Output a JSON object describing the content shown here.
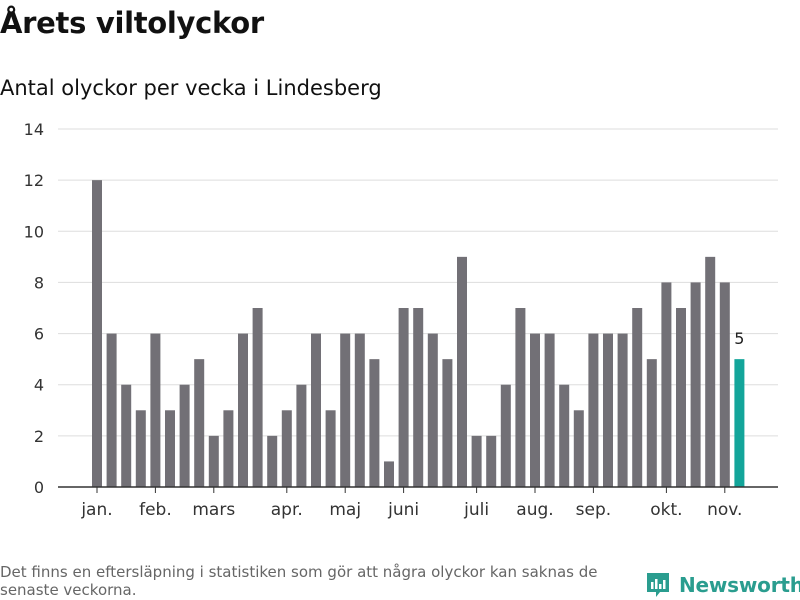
{
  "header": {
    "title": "Årets viltolyckor",
    "subtitle": "Antal olyckor per vecka i Lindesberg"
  },
  "footer": {
    "note": "Det finns en eftersläpning i statistiken som gör att några olyckor kan saknas de senaste veckorna.",
    "brand": "Newsworthy",
    "brand_icon": "newsworthy-logo-icon"
  },
  "colors": {
    "bar": "#727076",
    "highlight": "#13a59a",
    "grid": "#dddddd",
    "axis": "#333333",
    "brand": "#2a9d8f"
  },
  "chart_data": {
    "type": "bar",
    "title": "Antal olyckor per vecka i Lindesberg",
    "xlabel": "",
    "ylabel": "",
    "ylim": [
      0,
      14
    ],
    "yticks": [
      0,
      2,
      4,
      6,
      8,
      10,
      12,
      14
    ],
    "grid": true,
    "values": [
      12,
      6,
      4,
      3,
      6,
      3,
      4,
      5,
      2,
      3,
      6,
      7,
      2,
      3,
      4,
      6,
      3,
      6,
      6,
      5,
      1,
      7,
      7,
      6,
      5,
      9,
      2,
      2,
      4,
      7,
      6,
      6,
      4,
      3,
      6,
      6,
      6,
      7,
      5,
      8,
      7,
      8,
      9,
      8,
      5
    ],
    "highlight_index": 44,
    "highlight_label": "5",
    "month_labels": [
      {
        "label": "jan.",
        "index": 0
      },
      {
        "label": "feb.",
        "index": 4
      },
      {
        "label": "mars",
        "index": 8
      },
      {
        "label": "apr.",
        "index": 13
      },
      {
        "label": "maj",
        "index": 17
      },
      {
        "label": "juni",
        "index": 21
      },
      {
        "label": "juli",
        "index": 26
      },
      {
        "label": "aug.",
        "index": 30
      },
      {
        "label": "sep.",
        "index": 34
      },
      {
        "label": "okt.",
        "index": 39
      },
      {
        "label": "nov.",
        "index": 43
      }
    ]
  }
}
